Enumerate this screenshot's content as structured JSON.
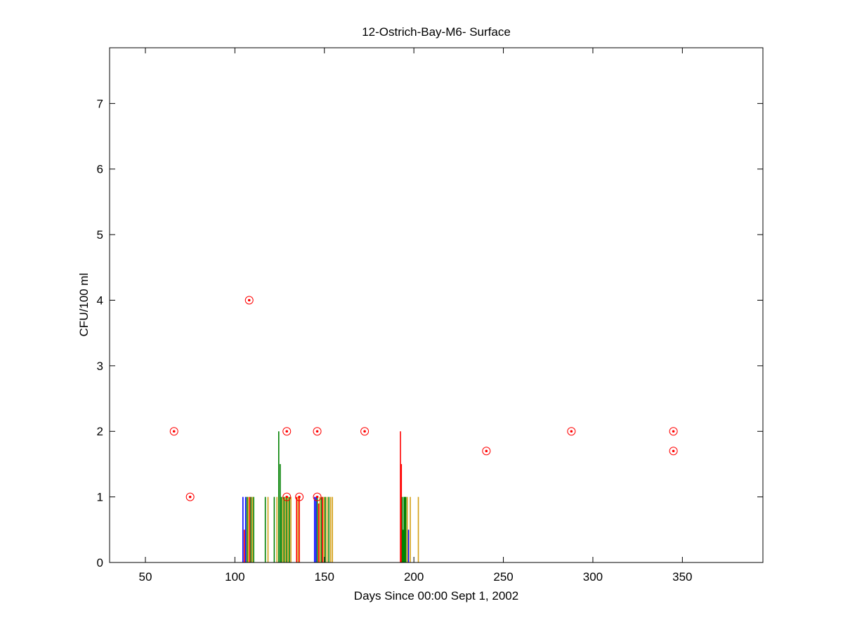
{
  "chart_data": {
    "type": "scatter",
    "title": "12-Ostrich-Bay-M6- Surface",
    "xlabel": "Days Since 00:00 Sept 1, 2002",
    "ylabel": "CFU/100 ml",
    "xlim": [
      30,
      395
    ],
    "ylim": [
      0,
      7.85
    ],
    "xticks": [
      50,
      100,
      150,
      200,
      250,
      300,
      350
    ],
    "yticks": [
      0,
      1,
      2,
      3,
      4,
      5,
      6,
      7
    ],
    "grid": false,
    "legend": "none",
    "colors": {
      "blue": "#0000ff",
      "green": "#008000",
      "red": "#ff0000",
      "yellow": "#d4a017"
    },
    "markers": {
      "style": "circle-with-dot",
      "color": "#ff0000",
      "points": [
        {
          "x": 66,
          "y": 2
        },
        {
          "x": 75,
          "y": 1
        },
        {
          "x": 108,
          "y": 4
        },
        {
          "x": 129,
          "y": 2
        },
        {
          "x": 129,
          "y": 1
        },
        {
          "x": 136,
          "y": 1
        },
        {
          "x": 146,
          "y": 2
        },
        {
          "x": 146,
          "y": 1
        },
        {
          "x": 172.5,
          "y": 2
        },
        {
          "x": 240.5,
          "y": 1.7
        },
        {
          "x": 288,
          "y": 2
        },
        {
          "x": 345,
          "y": 2
        },
        {
          "x": 345,
          "y": 1.7
        }
      ]
    },
    "stems": [
      {
        "x": 104.5,
        "y": 1,
        "color": "blue"
      },
      {
        "x": 105.3,
        "y": 0.5,
        "color": "red"
      },
      {
        "x": 106.0,
        "y": 1,
        "color": "blue"
      },
      {
        "x": 106.8,
        "y": 1,
        "color": "green"
      },
      {
        "x": 107.5,
        "y": 1,
        "color": "yellow"
      },
      {
        "x": 108.3,
        "y": 1,
        "color": "red"
      },
      {
        "x": 109.0,
        "y": 1,
        "color": "green"
      },
      {
        "x": 109.8,
        "y": 1,
        "color": "yellow"
      },
      {
        "x": 110.5,
        "y": 1,
        "color": "green"
      },
      {
        "x": 117.0,
        "y": 1,
        "color": "green"
      },
      {
        "x": 118.5,
        "y": 1,
        "color": "yellow"
      },
      {
        "x": 122.0,
        "y": 1,
        "color": "green"
      },
      {
        "x": 123.5,
        "y": 1,
        "color": "yellow"
      },
      {
        "x": 124.5,
        "y": 2,
        "color": "green"
      },
      {
        "x": 125.3,
        "y": 1.5,
        "color": "green"
      },
      {
        "x": 126.0,
        "y": 1,
        "color": "green"
      },
      {
        "x": 126.8,
        "y": 1,
        "color": "yellow"
      },
      {
        "x": 127.5,
        "y": 1,
        "color": "green"
      },
      {
        "x": 128.3,
        "y": 1,
        "color": "yellow"
      },
      {
        "x": 129.0,
        "y": 1,
        "color": "green"
      },
      {
        "x": 129.8,
        "y": 1,
        "color": "yellow"
      },
      {
        "x": 130.5,
        "y": 1,
        "color": "green"
      },
      {
        "x": 131.3,
        "y": 1,
        "color": "yellow"
      },
      {
        "x": 134.5,
        "y": 1,
        "color": "red"
      },
      {
        "x": 135.3,
        "y": 1,
        "color": "yellow"
      },
      {
        "x": 136.0,
        "y": 1,
        "color": "red"
      },
      {
        "x": 144.5,
        "y": 1,
        "color": "blue"
      },
      {
        "x": 145.3,
        "y": 1,
        "color": "blue"
      },
      {
        "x": 146.0,
        "y": 1,
        "color": "green"
      },
      {
        "x": 146.8,
        "y": 0.9,
        "color": "red"
      },
      {
        "x": 147.5,
        "y": 1,
        "color": "yellow"
      },
      {
        "x": 148.3,
        "y": 1,
        "color": "green"
      },
      {
        "x": 149.0,
        "y": 1,
        "color": "red"
      },
      {
        "x": 149.8,
        "y": 1,
        "color": "yellow"
      },
      {
        "x": 150.5,
        "y": 1,
        "color": "green"
      },
      {
        "x": 151.5,
        "y": 1,
        "color": "yellow"
      },
      {
        "x": 152.5,
        "y": 1,
        "color": "green"
      },
      {
        "x": 153.5,
        "y": 1,
        "color": "yellow"
      },
      {
        "x": 154.5,
        "y": 1,
        "color": "yellow"
      },
      {
        "x": 192.5,
        "y": 2,
        "color": "red"
      },
      {
        "x": 193.0,
        "y": 1.5,
        "color": "red"
      },
      {
        "x": 193.5,
        "y": 1,
        "color": "green"
      },
      {
        "x": 194.0,
        "y": 0.5,
        "color": "green"
      },
      {
        "x": 194.5,
        "y": 1,
        "color": "green"
      },
      {
        "x": 195.0,
        "y": 1,
        "color": "green"
      },
      {
        "x": 195.5,
        "y": 1,
        "color": "green"
      },
      {
        "x": 196.3,
        "y": 1,
        "color": "yellow"
      },
      {
        "x": 197.0,
        "y": 0.5,
        "color": "blue"
      },
      {
        "x": 198.0,
        "y": 1,
        "color": "yellow"
      },
      {
        "x": 202.5,
        "y": 1,
        "color": "yellow"
      }
    ]
  }
}
